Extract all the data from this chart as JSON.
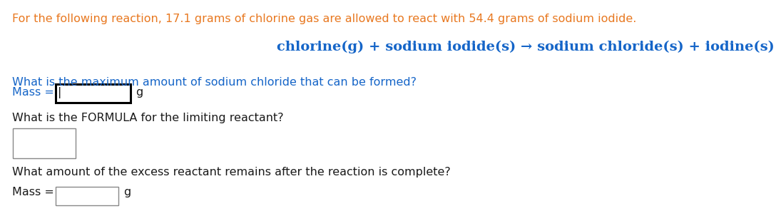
{
  "line1": "For the following reaction, 17.1 grams of chlorine gas are allowed to react with 54.4 grams of sodium iodide.",
  "equation": "chlorine(g) + sodium iodide(s) → sodium chloride(s) + iodine(s)",
  "q1": "What is the maximum amount of sodium chloride that can be formed?",
  "mass1_label": "Mass = ",
  "mass1_unit": "g",
  "q2": "What is the FORMULA for the limiting reactant?",
  "q3": "What amount of the excess reactant remains after the reaction is complete?",
  "mass2_label": "Mass = ",
  "mass2_unit": "g",
  "text_color_orange": "#E87820",
  "text_color_blue": "#1565C8",
  "text_color_black": "#1a1a1a",
  "text_color_gray": "#444444",
  "bg_color": "#ffffff",
  "line1_fontsize": 11.5,
  "eq_fontsize": 14,
  "q_fontsize": 11.5,
  "label_fontsize": 11.5
}
